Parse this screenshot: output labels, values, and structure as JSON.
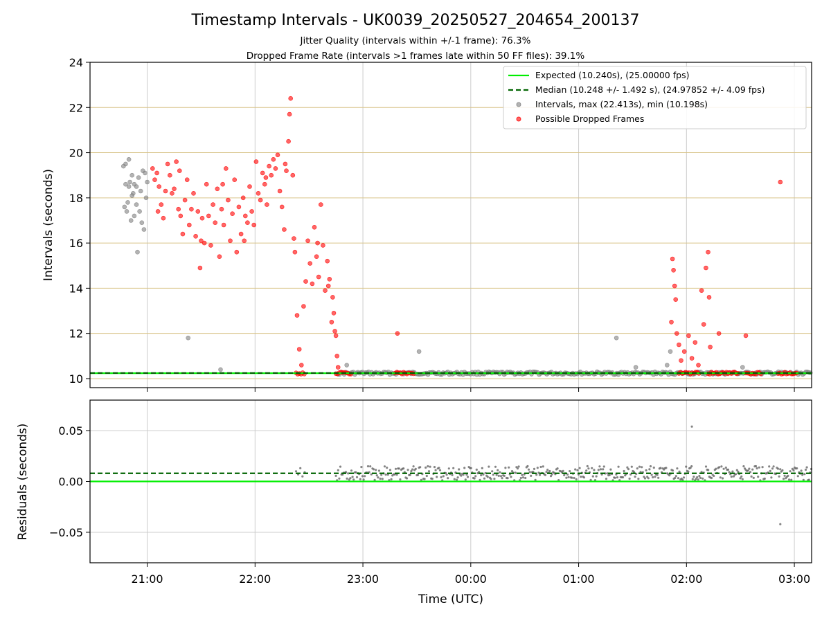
{
  "figure": {
    "title": "Timestamp Intervals - UK0039_20250527_204654_200137",
    "subtitle_1": "Jitter Quality (intervals within +/-1 frame): 76.3%",
    "subtitle_2": "Dropped Frame Rate (intervals >1 frames late within 50 FF files): 39.1%",
    "colors": {
      "expected": "#00ee00",
      "median": "#006400",
      "intervals": "#808080",
      "dropped": "#ff0000",
      "hgrid_top": "#d9c48a",
      "grid": "#cccccc"
    }
  },
  "chart_data": [
    {
      "type": "scatter",
      "xlabel": "",
      "ylabel": "Intervals (seconds)",
      "ylim": [
        9.6,
        24
      ],
      "yticks": [
        10,
        12,
        14,
        16,
        18,
        20,
        22,
        24
      ],
      "xlim_hours": [
        20.47,
        27.16
      ],
      "xticks": [
        {
          "h": 21,
          "label": "21:00"
        },
        {
          "h": 22,
          "label": "22:00"
        },
        {
          "h": 23,
          "label": "23:00"
        },
        {
          "h": 24,
          "label": "00:00"
        },
        {
          "h": 25,
          "label": "01:00"
        },
        {
          "h": 26,
          "label": "02:00"
        },
        {
          "h": 27,
          "label": "03:00"
        }
      ],
      "grid": "horizontal and vertical",
      "legend_position": "upper right",
      "legend": [
        {
          "label": "Expected (10.240s), (25.00000 fps)",
          "kind": "line"
        },
        {
          "label": "Median (10.248 +/- 1.492 s), (24.97852 +/- 4.09 fps)",
          "kind": "dashed"
        },
        {
          "label": "Intervals, max (22.413s), min (10.198s)",
          "kind": "grey-dot"
        },
        {
          "label": "Possible Dropped Frames",
          "kind": "red-dot"
        }
      ],
      "expected_value": 10.24,
      "median_value": 10.248,
      "series": [
        {
          "name": "Intervals",
          "points": [
            [
              20.78,
              19.4
            ],
            [
              20.8,
              19.5
            ],
            [
              20.83,
              19.7
            ],
            [
              20.86,
              19.0
            ],
            [
              20.88,
              18.6
            ],
            [
              20.9,
              18.5
            ],
            [
              20.92,
              18.9
            ],
            [
              20.94,
              18.3
            ],
            [
              20.96,
              19.2
            ],
            [
              20.98,
              19.1
            ],
            [
              20.8,
              18.6
            ],
            [
              20.84,
              18.7
            ],
            [
              20.87,
              18.2
            ],
            [
              20.82,
              17.8
            ],
            [
              20.79,
              17.6
            ],
            [
              20.81,
              17.4
            ],
            [
              20.85,
              17.0
            ],
            [
              20.9,
              17.7
            ],
            [
              20.93,
              17.4
            ],
            [
              20.95,
              16.9
            ],
            [
              20.97,
              16.6
            ],
            [
              20.91,
              15.6
            ],
            [
              20.99,
              18.0
            ],
            [
              21.0,
              18.7
            ],
            [
              20.88,
              17.2
            ],
            [
              20.86,
              18.1
            ],
            [
              20.83,
              18.5
            ],
            [
              21.38,
              11.8
            ],
            [
              21.68,
              10.4
            ],
            [
              22.85,
              10.6
            ],
            [
              23.52,
              11.2
            ],
            [
              25.35,
              11.8
            ],
            [
              25.53,
              10.5
            ],
            [
              25.82,
              10.6
            ],
            [
              25.85,
              11.2
            ],
            [
              26.52,
              10.5
            ]
          ]
        },
        {
          "name": "Possible Dropped Frames",
          "points": [
            [
              21.05,
              19.3
            ],
            [
              21.07,
              18.8
            ],
            [
              21.09,
              19.1
            ],
            [
              21.11,
              18.5
            ],
            [
              21.13,
              17.7
            ],
            [
              21.15,
              17.1
            ],
            [
              21.17,
              18.3
            ],
            [
              21.19,
              19.5
            ],
            [
              21.21,
              19.0
            ],
            [
              21.23,
              18.2
            ],
            [
              21.25,
              18.4
            ],
            [
              21.27,
              19.6
            ],
            [
              21.29,
              17.5
            ],
            [
              21.31,
              17.2
            ],
            [
              21.33,
              16.4
            ],
            [
              21.35,
              17.9
            ],
            [
              21.37,
              18.8
            ],
            [
              21.39,
              16.8
            ],
            [
              21.41,
              17.5
            ],
            [
              21.43,
              18.2
            ],
            [
              21.45,
              16.3
            ],
            [
              21.47,
              17.4
            ],
            [
              21.49,
              14.9
            ],
            [
              21.51,
              17.1
            ],
            [
              21.53,
              16.0
            ],
            [
              21.55,
              18.6
            ],
            [
              21.57,
              17.2
            ],
            [
              21.59,
              15.9
            ],
            [
              21.61,
              17.7
            ],
            [
              21.63,
              16.9
            ],
            [
              21.65,
              18.4
            ],
            [
              21.67,
              15.4
            ],
            [
              21.69,
              17.5
            ],
            [
              21.71,
              16.8
            ],
            [
              21.73,
              19.3
            ],
            [
              21.75,
              17.9
            ],
            [
              21.77,
              16.1
            ],
            [
              21.79,
              17.3
            ],
            [
              21.81,
              18.8
            ],
            [
              21.83,
              15.6
            ],
            [
              21.85,
              17.6
            ],
            [
              21.87,
              16.4
            ],
            [
              21.89,
              18.0
            ],
            [
              21.91,
              17.2
            ],
            [
              21.93,
              16.9
            ],
            [
              21.95,
              18.5
            ],
            [
              21.97,
              17.4
            ],
            [
              21.99,
              16.8
            ],
            [
              22.01,
              19.6
            ],
            [
              22.03,
              18.2
            ],
            [
              22.05,
              17.9
            ],
            [
              22.07,
              19.1
            ],
            [
              22.09,
              18.6
            ],
            [
              22.11,
              17.7
            ],
            [
              22.13,
              19.4
            ],
            [
              22.15,
              19.0
            ],
            [
              22.17,
              19.7
            ],
            [
              22.19,
              19.3
            ],
            [
              22.21,
              19.9
            ],
            [
              22.23,
              18.3
            ],
            [
              22.25,
              17.6
            ],
            [
              22.27,
              16.6
            ],
            [
              22.29,
              19.2
            ],
            [
              22.31,
              20.5
            ],
            [
              22.32,
              21.7
            ],
            [
              22.33,
              22.4
            ],
            [
              22.35,
              19.0
            ],
            [
              22.37,
              15.6
            ],
            [
              22.39,
              12.8
            ],
            [
              22.41,
              11.3
            ],
            [
              22.43,
              10.6
            ],
            [
              22.45,
              13.2
            ],
            [
              22.47,
              14.3
            ],
            [
              22.49,
              16.1
            ],
            [
              22.51,
              15.1
            ],
            [
              22.53,
              14.2
            ],
            [
              22.55,
              16.7
            ],
            [
              22.57,
              15.4
            ],
            [
              22.59,
              14.5
            ],
            [
              22.61,
              17.7
            ],
            [
              22.63,
              15.9
            ],
            [
              22.65,
              13.9
            ],
            [
              22.67,
              15.2
            ],
            [
              22.69,
              14.4
            ],
            [
              22.71,
              12.5
            ],
            [
              22.72,
              13.6
            ],
            [
              22.73,
              12.9
            ],
            [
              22.74,
              12.1
            ],
            [
              22.75,
              11.9
            ],
            [
              22.76,
              11.0
            ],
            [
              22.77,
              10.5
            ],
            [
              21.1,
              17.4
            ],
            [
              21.3,
              19.2
            ],
            [
              21.5,
              16.1
            ],
            [
              21.7,
              18.6
            ],
            [
              21.9,
              16.1
            ],
            [
              22.1,
              18.9
            ],
            [
              22.28,
              19.5
            ],
            [
              22.36,
              16.2
            ],
            [
              22.58,
              16.0
            ],
            [
              22.68,
              14.1
            ],
            [
              23.32,
              12.0
            ],
            [
              25.87,
              15.3
            ],
            [
              25.88,
              14.8
            ],
            [
              25.89,
              14.1
            ],
            [
              25.9,
              13.5
            ],
            [
              25.86,
              12.5
            ],
            [
              25.91,
              12.0
            ],
            [
              25.93,
              11.5
            ],
            [
              25.95,
              10.8
            ],
            [
              25.98,
              11.2
            ],
            [
              26.02,
              11.9
            ],
            [
              26.05,
              10.9
            ],
            [
              26.08,
              11.6
            ],
            [
              26.11,
              10.6
            ],
            [
              26.14,
              13.9
            ],
            [
              26.16,
              12.4
            ],
            [
              26.18,
              14.9
            ],
            [
              26.2,
              15.6
            ],
            [
              26.21,
              13.6
            ],
            [
              26.22,
              11.4
            ],
            [
              26.3,
              12.0
            ],
            [
              26.55,
              11.9
            ],
            [
              26.87,
              18.7
            ]
          ]
        }
      ],
      "dense_runs": [
        {
          "series": "Intervals",
          "from_h": 22.77,
          "to_h": 27.16,
          "y": 10.24
        },
        {
          "series": "Possible Dropped Frames",
          "from_h": 22.38,
          "to_h": 22.47,
          "y": 10.24
        },
        {
          "series": "Possible Dropped Frames",
          "from_h": 22.75,
          "to_h": 22.9,
          "y": 10.24
        },
        {
          "series": "Possible Dropped Frames",
          "from_h": 23.3,
          "to_h": 23.48,
          "y": 10.24
        },
        {
          "series": "Possible Dropped Frames",
          "from_h": 25.93,
          "to_h": 26.12,
          "y": 10.24
        },
        {
          "series": "Possible Dropped Frames",
          "from_h": 26.2,
          "to_h": 26.48,
          "y": 10.24
        },
        {
          "series": "Possible Dropped Frames",
          "from_h": 26.55,
          "to_h": 26.7,
          "y": 10.24
        },
        {
          "series": "Possible Dropped Frames",
          "from_h": 26.85,
          "to_h": 27.02,
          "y": 10.24
        }
      ]
    },
    {
      "type": "scatter",
      "xlabel": "Time (UTC)",
      "ylabel": "Residuals (seconds)",
      "ylim": [
        -0.08,
        0.08
      ],
      "yticks": [
        {
          "v": 0.05,
          "label": "0.05"
        },
        {
          "v": 0.0,
          "label": "0.00"
        },
        {
          "v": -0.05,
          "label": "−0.05"
        }
      ],
      "xlim_hours": [
        20.47,
        27.16
      ],
      "grid": "horizontal and vertical",
      "expected_value": 0.0,
      "median_value": 0.008,
      "series": [
        {
          "name": "Residuals",
          "points": [
            [
              22.38,
              0.01
            ],
            [
              22.4,
              0.007
            ],
            [
              22.42,
              0.013
            ],
            [
              22.44,
              0.005
            ],
            [
              22.46,
              0.009
            ],
            [
              26.05,
              0.054
            ],
            [
              26.87,
              -0.042
            ]
          ]
        }
      ],
      "dense_runs": [
        {
          "series": "Residuals",
          "from_h": 22.75,
          "to_h": 27.16,
          "y_center": 0.008,
          "y_spread": 0.007
        }
      ]
    }
  ]
}
